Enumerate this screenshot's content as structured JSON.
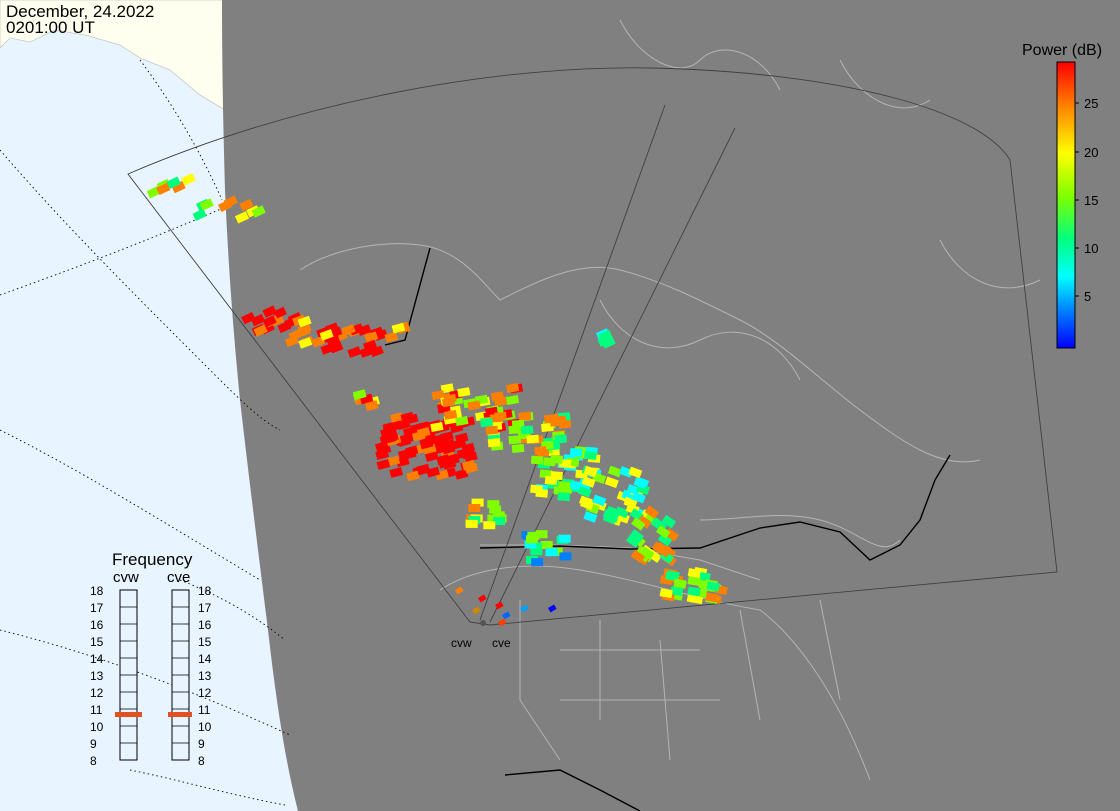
{
  "header": {
    "date": "December, 24.2022",
    "time": "0201:00 UT"
  },
  "colorbar": {
    "title": "Power (dB)",
    "ticks": [
      "25",
      "20",
      "15",
      "10",
      "5"
    ],
    "stops": [
      "#ff0000",
      "#ff7f00",
      "#ffff00",
      "#7fff00",
      "#00ff7f",
      "#00ffff",
      "#007fff",
      "#0000ff"
    ]
  },
  "frequency_panel": {
    "title": "Frequency",
    "radar_left": "cvw",
    "radar_right": "cve",
    "scale": [
      "18",
      "17",
      "16",
      "15",
      "14",
      "13",
      "12",
      "11",
      "10",
      "9",
      "8"
    ],
    "selected_mhz": 11,
    "marker_color": "#e05020"
  },
  "radars": {
    "left": "cvw",
    "right": "cve"
  },
  "colors": {
    "ocean": "#e8f4ff",
    "land_daylight": "#fffff0",
    "nightside": "#808080",
    "borders": "#b4b4b4"
  }
}
